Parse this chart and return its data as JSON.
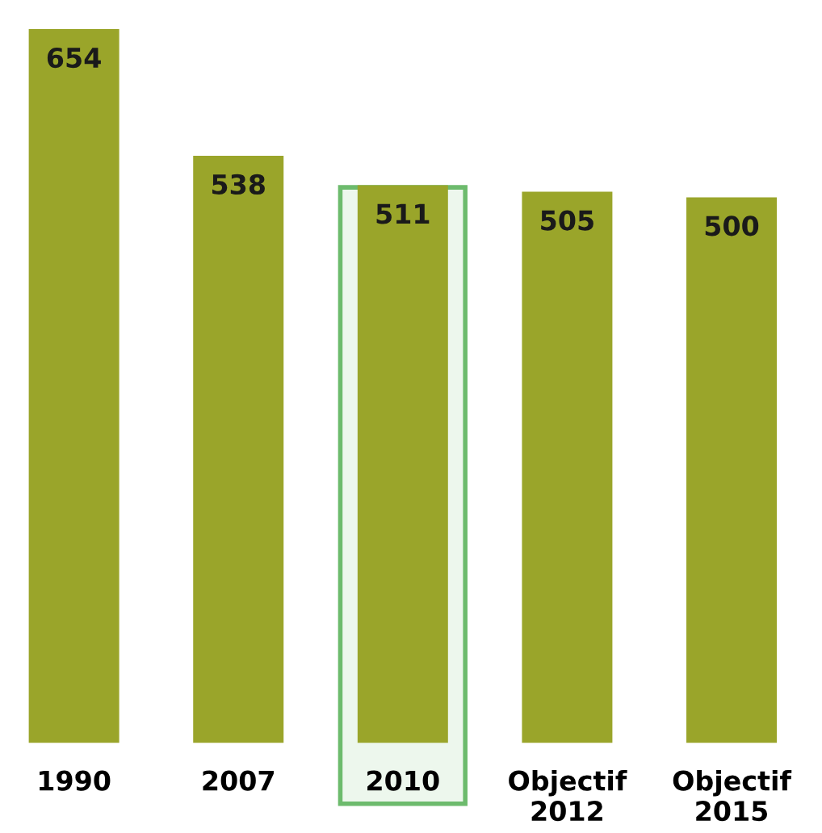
{
  "chart_data": {
    "type": "bar",
    "categories": [
      "1990",
      "2007",
      "2010",
      "Objectif\n2012",
      "Objectif\n2015"
    ],
    "values": [
      654,
      538,
      511,
      505,
      500
    ],
    "color": "#9aa52a",
    "data_labels": true,
    "grid": false,
    "legend": false,
    "bands": [
      {
        "axis": "x",
        "from": "2010",
        "to": "2010",
        "color": "#6dbb6d"
      }
    ]
  }
}
